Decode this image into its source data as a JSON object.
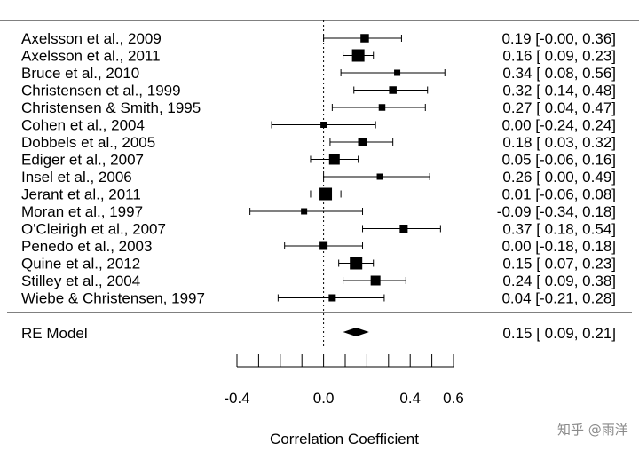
{
  "chart_data": {
    "type": "forest",
    "xlabel": "Correlation Coefficient",
    "xlim": [
      -0.4,
      0.6
    ],
    "xticks": [
      -0.4,
      -0.3,
      -0.2,
      -0.1,
      0.0,
      0.1,
      0.2,
      0.3,
      0.4,
      0.5,
      0.6
    ],
    "xtick_labels": [
      {
        "value": -0.4,
        "text": "-0.4"
      },
      {
        "value": 0.0,
        "text": "0.0"
      },
      {
        "value": 0.4,
        "text": "0.4"
      },
      {
        "value": 0.6,
        "text": "0.6"
      }
    ],
    "reference_line": 0.0,
    "studies": [
      {
        "label": "Axelsson et al., 2009",
        "est": 0.19,
        "lo": 0.0,
        "hi": 0.36,
        "weight": 0.55,
        "ci_text": "0.19 [-0.00, 0.36]"
      },
      {
        "label": "Axelsson et al., 2011",
        "est": 0.16,
        "lo": 0.09,
        "hi": 0.23,
        "weight": 1.0,
        "ci_text": "0.16 [ 0.09, 0.23]"
      },
      {
        "label": "Bruce et al., 2010",
        "est": 0.34,
        "lo": 0.08,
        "hi": 0.56,
        "weight": 0.3,
        "ci_text": "0.34 [ 0.08, 0.56]"
      },
      {
        "label": "Christensen et al., 1999",
        "est": 0.32,
        "lo": 0.14,
        "hi": 0.48,
        "weight": 0.45,
        "ci_text": "0.32 [ 0.14, 0.48]"
      },
      {
        "label": "Christensen & Smith, 1995",
        "est": 0.27,
        "lo": 0.04,
        "hi": 0.47,
        "weight": 0.35,
        "ci_text": "0.27 [ 0.04, 0.47]"
      },
      {
        "label": "Cohen et al., 2004",
        "est": 0.0,
        "lo": -0.24,
        "hi": 0.24,
        "weight": 0.3,
        "ci_text": "0.00 [-0.24, 0.24]"
      },
      {
        "label": "Dobbels et al., 2005",
        "est": 0.18,
        "lo": 0.03,
        "hi": 0.32,
        "weight": 0.6,
        "ci_text": "0.18 [ 0.03, 0.32]"
      },
      {
        "label": "Ediger et al., 2007",
        "est": 0.05,
        "lo": -0.06,
        "hi": 0.16,
        "weight": 0.8,
        "ci_text": "0.05 [-0.06, 0.16]"
      },
      {
        "label": "Insel et al., 2006",
        "est": 0.26,
        "lo": 0.0,
        "hi": 0.49,
        "weight": 0.3,
        "ci_text": "0.26 [ 0.00, 0.49]"
      },
      {
        "label": "Jerant et al., 2011",
        "est": 0.01,
        "lo": -0.06,
        "hi": 0.08,
        "weight": 1.0,
        "ci_text": "0.01 [-0.06, 0.08]"
      },
      {
        "label": "Moran et al., 1997",
        "est": -0.09,
        "lo": -0.34,
        "hi": 0.18,
        "weight": 0.3,
        "ci_text": "-0.09 [-0.34, 0.18]"
      },
      {
        "label": "O'Cleirigh et al., 2007",
        "est": 0.37,
        "lo": 0.18,
        "hi": 0.54,
        "weight": 0.5,
        "ci_text": "0.37 [ 0.18, 0.54]"
      },
      {
        "label": "Penedo et al., 2003",
        "est": 0.0,
        "lo": -0.18,
        "hi": 0.18,
        "weight": 0.5,
        "ci_text": "0.00 [-0.18, 0.18]"
      },
      {
        "label": "Quine et al., 2012",
        "est": 0.15,
        "lo": 0.07,
        "hi": 0.23,
        "weight": 1.0,
        "ci_text": "0.15 [ 0.07, 0.23]"
      },
      {
        "label": "Stilley et al., 2004",
        "est": 0.24,
        "lo": 0.09,
        "hi": 0.38,
        "weight": 0.7,
        "ci_text": "0.24 [ 0.09, 0.38]"
      },
      {
        "label": "Wiebe & Christensen, 1997",
        "est": 0.04,
        "lo": -0.21,
        "hi": 0.28,
        "weight": 0.4,
        "ci_text": "0.04 [-0.21, 0.28]"
      }
    ],
    "summary": {
      "label": "RE Model",
      "est": 0.15,
      "lo": 0.09,
      "hi": 0.21,
      "ci_text": "0.15 [ 0.09, 0.21]"
    }
  },
  "watermark": "知乎 @雨洋"
}
